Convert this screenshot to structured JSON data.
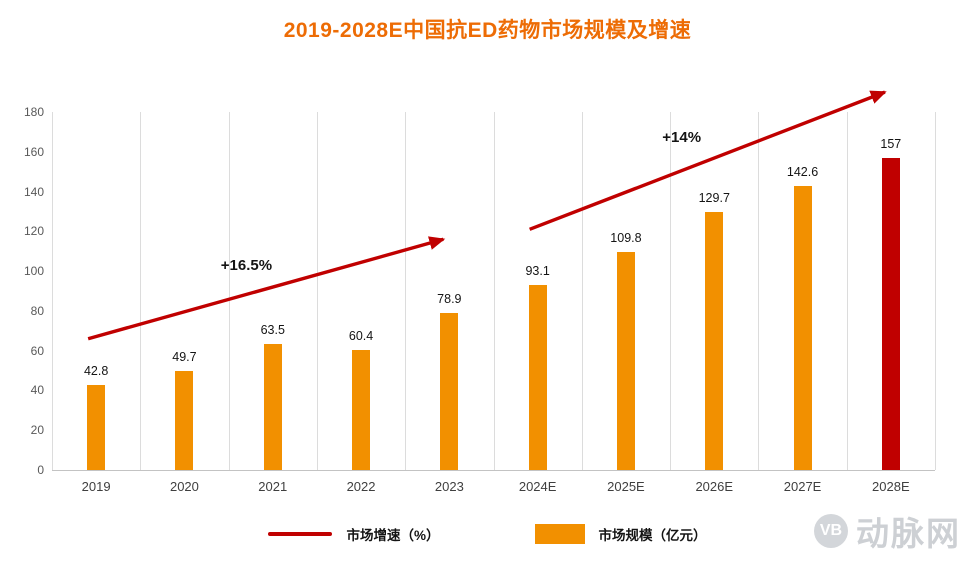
{
  "title": "2019-2028E中国抗ED药物市场规模及增速",
  "colors": {
    "title": "#ED6C05",
    "bar": "#F29000",
    "highlight_bar": "#C00000",
    "growth_line": "#C00000",
    "gridline": "#DCDCDC",
    "axis_text": "#595959",
    "watermark": "#CDD0D4"
  },
  "chart_data": {
    "type": "bar",
    "title": "2019-2028E中国抗ED药物市场规模及增速",
    "categories": [
      "2019",
      "2020",
      "2021",
      "2022",
      "2023",
      "2024E",
      "2025E",
      "2026E",
      "2027E",
      "2028E"
    ],
    "values": [
      42.8,
      49.7,
      63.5,
      60.4,
      78.9,
      93.1,
      109.8,
      129.7,
      142.6,
      157
    ],
    "value_labels": [
      "42.8",
      "49.7",
      "63.5",
      "60.4",
      "78.9",
      "93.1",
      "109.8",
      "129.7",
      "142.6",
      "157"
    ],
    "bar_colors": [
      "#F29000",
      "#F29000",
      "#F29000",
      "#F29000",
      "#F29000",
      "#F29000",
      "#F29000",
      "#F29000",
      "#F29000",
      "#C00000"
    ],
    "xlabel": "",
    "ylabel": "",
    "ylim": [
      0,
      180
    ],
    "ytick_step": 20,
    "grid": "vertical",
    "annotations": [
      {
        "label": "+16.5%",
        "from_cat": 0,
        "to_cat": 4,
        "from_value": 66,
        "to_value": 116
      },
      {
        "label": "+14%",
        "from_cat": 5,
        "to_cat": 9,
        "from_value": 121,
        "to_value": 190
      }
    ],
    "legend": [
      {
        "label": "市场增速（%）",
        "swatch": "line",
        "color": "#C00000"
      },
      {
        "label": "市场规模（亿元）",
        "swatch": "square",
        "color": "#F29000"
      }
    ],
    "legend_position": "bottom"
  },
  "watermark": {
    "logo_text": "VB",
    "text": "动脉网"
  }
}
